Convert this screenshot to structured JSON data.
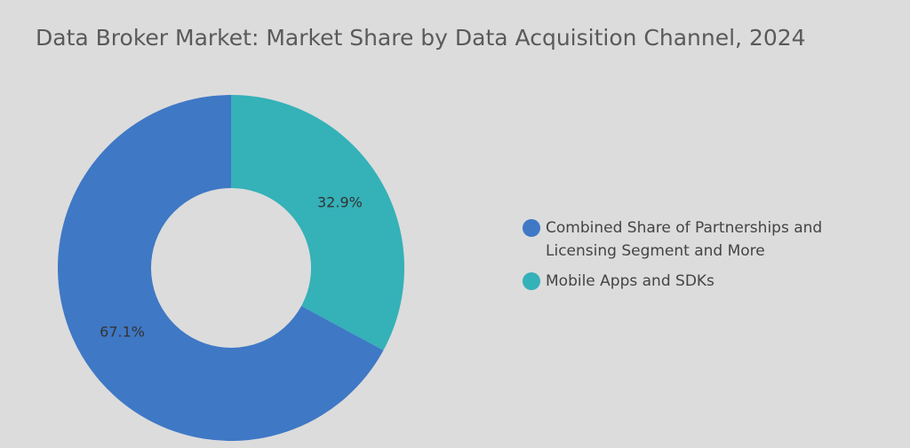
{
  "chart_data": {
    "type": "donut",
    "title": "Data Broker Market: Market Share by Data Acquisition Channel, 2024",
    "categories": [
      "Combined Share of Partnerships and Licensing Segment and More",
      "Mobile Apps and SDKs"
    ],
    "values": [
      67.1,
      32.9
    ],
    "value_labels": [
      "67.1%",
      "32.9%"
    ],
    "colors": [
      "#3f78c5",
      "#35b1b8"
    ],
    "legend": "right"
  }
}
